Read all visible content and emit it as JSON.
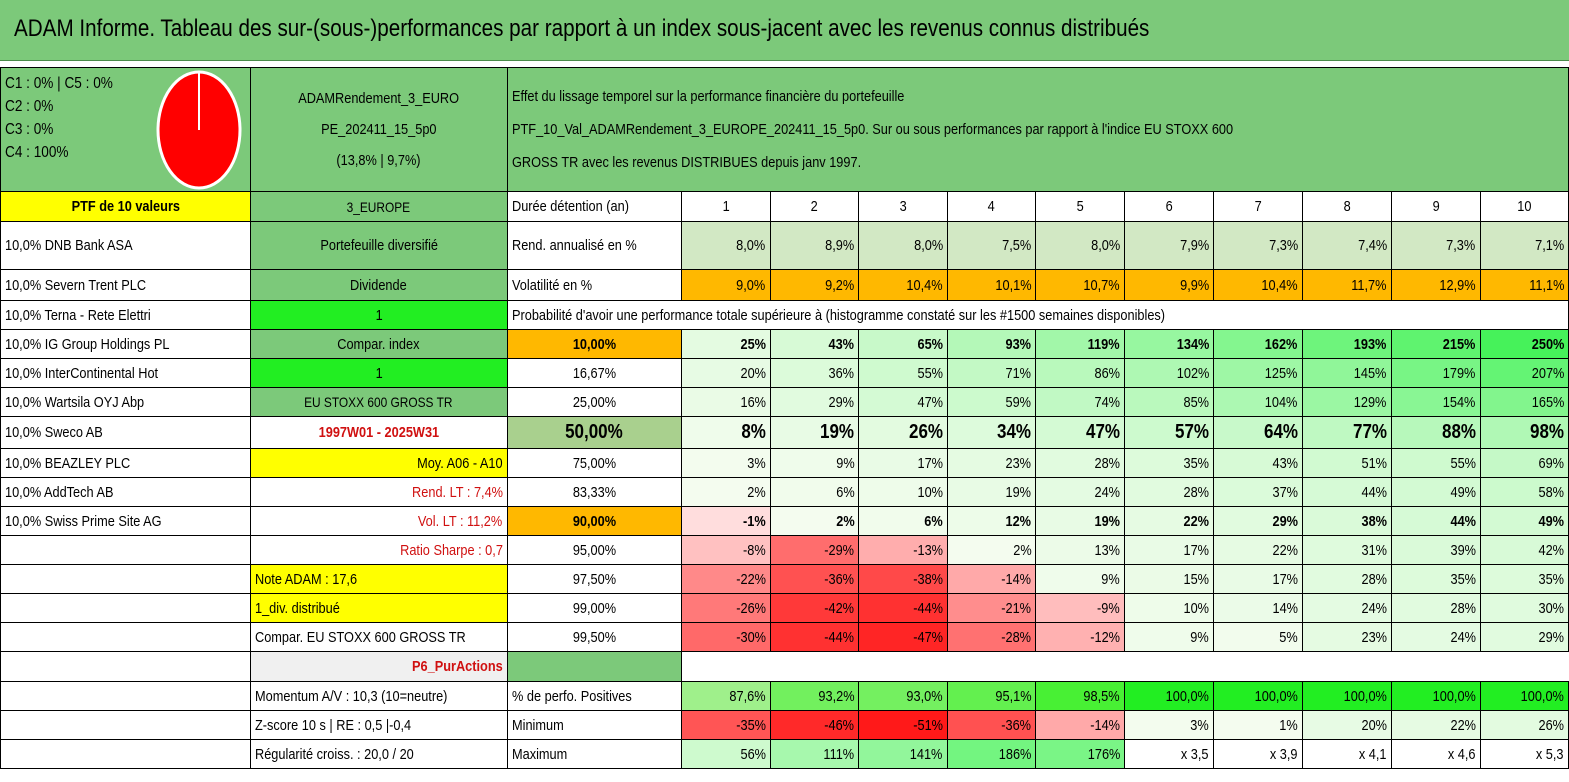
{
  "title": "ADAM Informe. Tableau des sur-(sous-)performances par rapport à un index sous-jacent avec les revenus connus distribués",
  "legend": [
    "C1 : 0% | C5 : 0%",
    "C2 : 0%",
    "C3 : 0%",
    "C4 : 100%"
  ],
  "portfolio": {
    "name_line1": "ADAMRendement_3_EURO",
    "name_line2": "PE_202411_15_5p0",
    "name_line3": "(13,8% | 9,7%)",
    "description_line1": "Effet du lissage temporel sur la performance financière du portefeuille",
    "description_line2": "PTF_10_Val_ADAMRendement_3_EUROPE_202411_15_5p0. Sur ou sous performances par rapport à l'indice EU STOXX 600",
    "description_line3": "GROSS TR avec les revenus DISTRIBUES depuis janv 1997."
  },
  "holdings_header": "PTF de 10 valeurs",
  "holdings": [
    "10,0% DNB Bank ASA",
    "10,0% Severn Trent PLC",
    "10,0% Terna - Rete Elettri",
    "10,0% IG Group Holdings PL",
    "10,0% InterContinental Hot",
    "10,0% Wartsila OYJ Abp",
    "10,0% Sweco AB",
    "10,0% BEAZLEY PLC",
    "10,0% AddTech AB",
    "10,0% Swiss Prime Site AG"
  ],
  "info": [
    "3_EUROPE",
    "Portefeuille diversifié",
    "Dividende",
    "1",
    "Compar. index",
    "1",
    "EU STOXX 600 GROSS TR",
    "1997W01 - 2025W31",
    "Moy. A06 - A10",
    "Rend. LT : 7,4%",
    "Vol. LT : 11,2%",
    "Ratio Sharpe : 0,7",
    "Note ADAM : 17,6",
    "1_div. distribué",
    "Compar. EU STOXX 600 GROSS TR",
    "P6_PurActions",
    "Momentum A/V : 10,3 (10=neutre)",
    "Z-score 10 s | RE : 0,5 |-0,4",
    "Régularité croiss. : 20,0 / 20"
  ],
  "duration_label": "Durée détention (an)",
  "years": [
    "1",
    "2",
    "3",
    "4",
    "5",
    "6",
    "7",
    "8",
    "9",
    "10"
  ],
  "rend_label": "Rend. annualisé en %",
  "rend": [
    "8,0%",
    "8,9%",
    "8,0%",
    "7,5%",
    "8,0%",
    "7,9%",
    "7,3%",
    "7,4%",
    "7,3%",
    "7,1%"
  ],
  "vol_label": "Volatilité en %",
  "vol": [
    "9,0%",
    "9,2%",
    "10,4%",
    "10,1%",
    "10,7%",
    "9,9%",
    "10,4%",
    "11,7%",
    "12,9%",
    "11,1%"
  ],
  "proba_label": "Probabilité d'avoir une performance totale supérieure à (histogramme constaté sur les #1500 semaines disponibles)",
  "proba_rows": [
    {
      "p": "10,00%",
      "v": [
        "25%",
        "43%",
        "65%",
        "93%",
        "119%",
        "134%",
        "162%",
        "193%",
        "215%",
        "250%"
      ]
    },
    {
      "p": "16,67%",
      "v": [
        "20%",
        "36%",
        "55%",
        "71%",
        "86%",
        "102%",
        "125%",
        "145%",
        "179%",
        "207%"
      ]
    },
    {
      "p": "25,00%",
      "v": [
        "16%",
        "29%",
        "47%",
        "59%",
        "74%",
        "85%",
        "104%",
        "129%",
        "154%",
        "165%"
      ]
    },
    {
      "p": "50,00%",
      "v": [
        "8%",
        "19%",
        "26%",
        "34%",
        "47%",
        "57%",
        "64%",
        "77%",
        "88%",
        "98%"
      ]
    },
    {
      "p": "75,00%",
      "v": [
        "3%",
        "9%",
        "17%",
        "23%",
        "28%",
        "35%",
        "43%",
        "51%",
        "55%",
        "69%"
      ]
    },
    {
      "p": "83,33%",
      "v": [
        "2%",
        "6%",
        "10%",
        "19%",
        "24%",
        "28%",
        "37%",
        "44%",
        "49%",
        "58%"
      ]
    },
    {
      "p": "90,00%",
      "v": [
        "-1%",
        "2%",
        "6%",
        "12%",
        "19%",
        "22%",
        "29%",
        "38%",
        "44%",
        "49%"
      ]
    },
    {
      "p": "95,00%",
      "v": [
        "-8%",
        "-29%",
        "-13%",
        "2%",
        "13%",
        "17%",
        "22%",
        "31%",
        "39%",
        "42%"
      ]
    },
    {
      "p": "97,50%",
      "v": [
        "-22%",
        "-36%",
        "-38%",
        "-14%",
        "9%",
        "15%",
        "17%",
        "28%",
        "35%",
        "35%"
      ]
    },
    {
      "p": "99,00%",
      "v": [
        "-26%",
        "-42%",
        "-44%",
        "-21%",
        "-9%",
        "10%",
        "14%",
        "24%",
        "28%",
        "30%"
      ]
    },
    {
      "p": "99,50%",
      "v": [
        "-30%",
        "-44%",
        "-47%",
        "-28%",
        "-12%",
        "9%",
        "5%",
        "23%",
        "24%",
        "29%"
      ]
    }
  ],
  "positive_label": "% de perfo. Positives",
  "positive": [
    "87,6%",
    "93,2%",
    "93,0%",
    "95,1%",
    "98,5%",
    "100,0%",
    "100,0%",
    "100,0%",
    "100,0%",
    "100,0%"
  ],
  "min_label": "Minimum",
  "min": [
    "-35%",
    "-46%",
    "-51%",
    "-36%",
    "-14%",
    "3%",
    "1%",
    "20%",
    "22%",
    "26%"
  ],
  "max_label": "Maximum",
  "max": [
    "56%",
    "111%",
    "141%",
    "186%",
    "176%",
    "x 3,5",
    "x 3,9",
    "x 4,1",
    "x 4,6",
    "x 5,3"
  ],
  "colors": {
    "header_green": "#7cc97a",
    "yellow": "#ffff00",
    "orange": "#ffb800",
    "bright_green": "#22ee22",
    "pie_red": "#ff0000"
  }
}
